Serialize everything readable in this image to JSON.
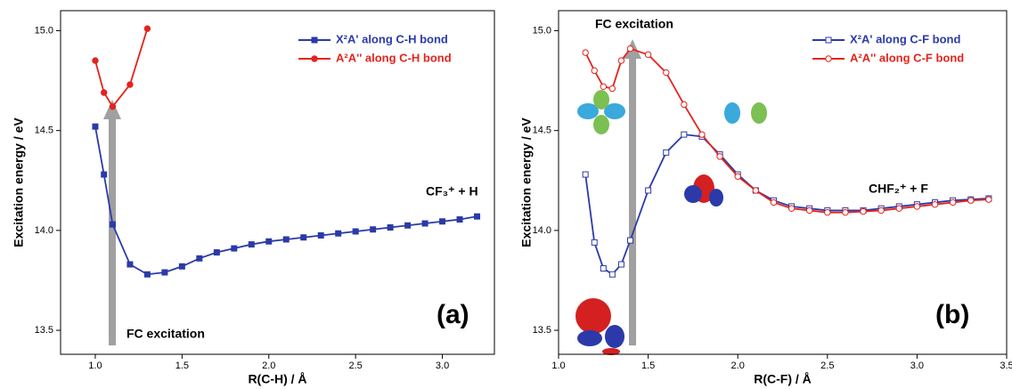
{
  "chart_data": [
    {
      "type": "line",
      "x_label": "R(C-H) / Å",
      "y_label": "Excitation energy / eV",
      "xlim": [
        0.8,
        3.3
      ],
      "ylim": [
        13.38,
        15.1
      ],
      "xticks": [
        {
          "value": 1,
          "label": "1.0"
        },
        1.5,
        {
          "value": 2,
          "label": "2.0"
        },
        2.5,
        {
          "value": 3,
          "label": "3.0"
        }
      ],
      "yticks": [
        13.5,
        {
          "value": 14,
          "label": "14.0"
        },
        14.5,
        {
          "value": 15,
          "label": "15.0"
        }
      ],
      "legend": "upper right",
      "marker_fill": "filled",
      "annotations": [
        "FC excitation",
        "CF₃⁺ + H",
        "(a)"
      ],
      "series": [
        {
          "name": "X²A' along C-H bond",
          "color": "#2b3aa8",
          "marker": "square",
          "x": [
            1.0,
            1.05,
            1.1,
            1.2,
            1.3,
            1.4,
            1.5,
            1.6,
            1.7,
            1.8,
            1.9,
            2.0,
            2.1,
            2.2,
            2.3,
            2.4,
            2.5,
            2.6,
            2.7,
            2.8,
            2.9,
            3.0,
            3.1,
            3.2
          ],
          "values": [
            14.52,
            14.28,
            14.03,
            13.83,
            13.78,
            13.79,
            13.82,
            13.86,
            13.89,
            13.91,
            13.93,
            13.945,
            13.955,
            13.965,
            13.975,
            13.985,
            13.995,
            14.005,
            14.015,
            14.025,
            14.035,
            14.045,
            14.055,
            14.07
          ]
        },
        {
          "name": "A²A'' along C-H bond",
          "color": "#e3241d",
          "marker": "circle",
          "x": [
            1.0,
            1.05,
            1.1,
            1.2,
            1.3
          ],
          "values": [
            14.85,
            14.69,
            14.62,
            14.73,
            15.01
          ]
        }
      ]
    },
    {
      "type": "line",
      "x_label": "R(C-F) / Å",
      "y_label": "Excitation energy / eV",
      "xlim": [
        1.0,
        3.5
      ],
      "ylim": [
        13.38,
        15.1
      ],
      "xticks": [
        {
          "value": 1,
          "label": "1.0"
        },
        1.5,
        {
          "value": 2,
          "label": "2.0"
        },
        2.5,
        {
          "value": 3,
          "label": "3.0"
        },
        3.5
      ],
      "yticks": [
        13.5,
        {
          "value": 14,
          "label": "14.0"
        },
        14.5,
        {
          "value": 15,
          "label": "15.0"
        }
      ],
      "legend": "upper right",
      "marker_fill": "open",
      "annotations": [
        "FC excitation",
        "CHF₂⁺ + F",
        "(b)"
      ],
      "series": [
        {
          "name": "X²A' along C-F bond",
          "color": "#2b3aa8",
          "marker": "square",
          "x": [
            1.15,
            1.2,
            1.25,
            1.3,
            1.35,
            1.4,
            1.5,
            1.6,
            1.7,
            1.8,
            1.9,
            2.0,
            2.1,
            2.2,
            2.3,
            2.4,
            2.5,
            2.6,
            2.7,
            2.8,
            2.9,
            3.0,
            3.1,
            3.2,
            3.3,
            3.4
          ],
          "values": [
            14.28,
            13.94,
            13.81,
            13.78,
            13.83,
            13.95,
            14.2,
            14.39,
            14.48,
            14.47,
            14.38,
            14.28,
            14.2,
            14.15,
            14.12,
            14.11,
            14.1,
            14.1,
            14.1,
            14.11,
            14.12,
            14.13,
            14.14,
            14.15,
            14.155,
            14.16
          ]
        },
        {
          "name": "A²A'' along C-F bond",
          "color": "#e3241d",
          "marker": "circle",
          "x": [
            1.15,
            1.2,
            1.25,
            1.3,
            1.35,
            1.4,
            1.5,
            1.6,
            1.7,
            1.8,
            1.9,
            2.0,
            2.1,
            2.2,
            2.3,
            2.4,
            2.5,
            2.6,
            2.7,
            2.8,
            2.9,
            3.0,
            3.1,
            3.2,
            3.3,
            3.4
          ],
          "values": [
            14.89,
            14.8,
            14.72,
            14.71,
            14.85,
            14.91,
            14.88,
            14.79,
            14.63,
            14.48,
            14.37,
            14.27,
            14.2,
            14.14,
            14.11,
            14.1,
            14.09,
            14.09,
            14.095,
            14.1,
            14.11,
            14.12,
            14.13,
            14.14,
            14.15,
            14.155
          ]
        }
      ]
    }
  ]
}
